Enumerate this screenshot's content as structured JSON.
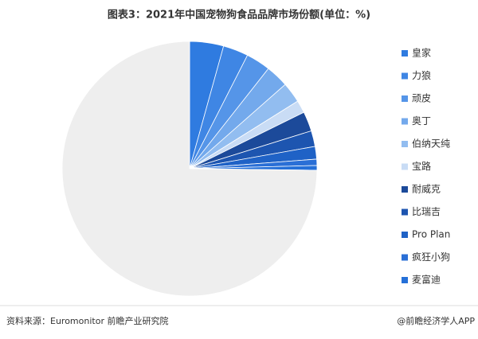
{
  "chart_data": {
    "type": "pie",
    "title": "图表3：2021年中国宠物狗食品品牌市场份额(单位：%)",
    "categories": [
      "皇家",
      "力狼",
      "顽皮",
      "奥丁",
      "伯纳天纯",
      "宝路",
      "耐威克",
      "比瑞吉",
      "Pro Plan",
      "疯狂小狗",
      "麦富迪",
      null
    ],
    "values": [
      4.3,
      3.2,
      3.1,
      2.9,
      2.6,
      1.6,
      2.5,
      2.0,
      1.6,
      0.8,
      0.6,
      74.8
    ],
    "colors": [
      "#2f7be0",
      "#3f86e4",
      "#5595e8",
      "#73a9ec",
      "#92bdf0",
      "#c9dcf5",
      "#1c4a9a",
      "#1d55b0",
      "#1f62c6",
      "#2a6fd6",
      "#2570d8",
      "#eeeeee"
    ],
    "source": "资料来源：Euromonitor 前瞻产业研究院",
    "credit": "@前瞻经济学人APP"
  }
}
